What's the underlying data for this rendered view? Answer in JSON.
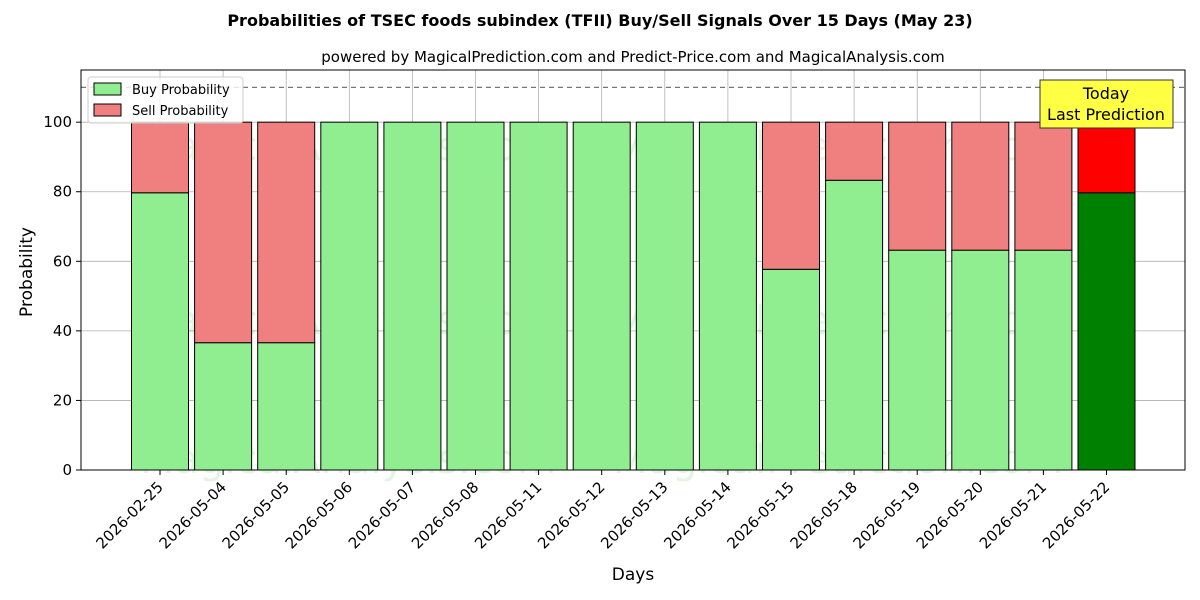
{
  "chart_data": {
    "type": "bar",
    "title": "Probabilities of TSEC foods subindex (TFII) Buy/Sell Signals Over 15 Days (May 23)",
    "subtitle": "powered by MagicalPrediction.com and Predict-Price.com and MagicalAnalysis.com",
    "xlabel": "Days",
    "ylabel": "Probability",
    "ylim": [
      0,
      115
    ],
    "yticks": [
      0,
      20,
      40,
      60,
      80,
      100
    ],
    "threshold": 110,
    "grid": true,
    "legend_position": "top-left",
    "categories": [
      "2026-02-25",
      "2026-05-04",
      "2026-05-05",
      "2026-05-06",
      "2026-05-07",
      "2026-05-08",
      "2026-05-11",
      "2026-05-12",
      "2026-05-13",
      "2026-05-14",
      "2026-05-15",
      "2026-05-18",
      "2026-05-19",
      "2026-05-20",
      "2026-05-21",
      "2026-05-22"
    ],
    "series": [
      {
        "name": "Buy Probability",
        "color": "#90ee90",
        "values": [
          79.7,
          36.6,
          36.6,
          100,
          100,
          100,
          100,
          100,
          100,
          100,
          57.7,
          83.3,
          63.2,
          63.2,
          63.2,
          79.7
        ]
      },
      {
        "name": "Sell Probability",
        "color": "#f08080",
        "values": [
          20.3,
          63.4,
          63.4,
          0,
          0,
          0,
          0,
          0,
          0,
          0,
          42.3,
          16.7,
          36.8,
          36.8,
          36.8,
          20.3
        ]
      }
    ],
    "highlight": {
      "index": 15,
      "buy_color": "#008000",
      "sell_color": "#ff0000"
    },
    "annotation": {
      "line1": "Today",
      "line2": "Last Prediction",
      "bg": "#ffff44"
    },
    "watermarks": [
      "MagicalAnalysis.com",
      "MagicalPrediction.com"
    ]
  }
}
